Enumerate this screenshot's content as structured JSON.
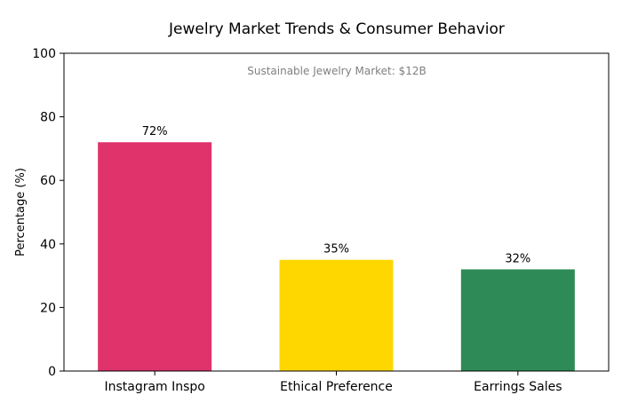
{
  "chart_data": {
    "type": "bar",
    "title": "Jewelry Market Trends & Consumer Behavior",
    "xlabel": "",
    "ylabel": "Percentage (%)",
    "ylim": [
      0,
      100
    ],
    "yticks": [
      0,
      20,
      40,
      60,
      80,
      100
    ],
    "categories": [
      "Instagram Inspo",
      "Ethical Preference",
      "Earrings Sales"
    ],
    "values": [
      72,
      35,
      32
    ],
    "data_labels": [
      "72%",
      "35%",
      "32%"
    ],
    "colors": [
      "#E0336B",
      "#FFD700",
      "#2E8B57"
    ],
    "annotation": "Sustainable Jewelry Market: $12B",
    "grid": false
  }
}
